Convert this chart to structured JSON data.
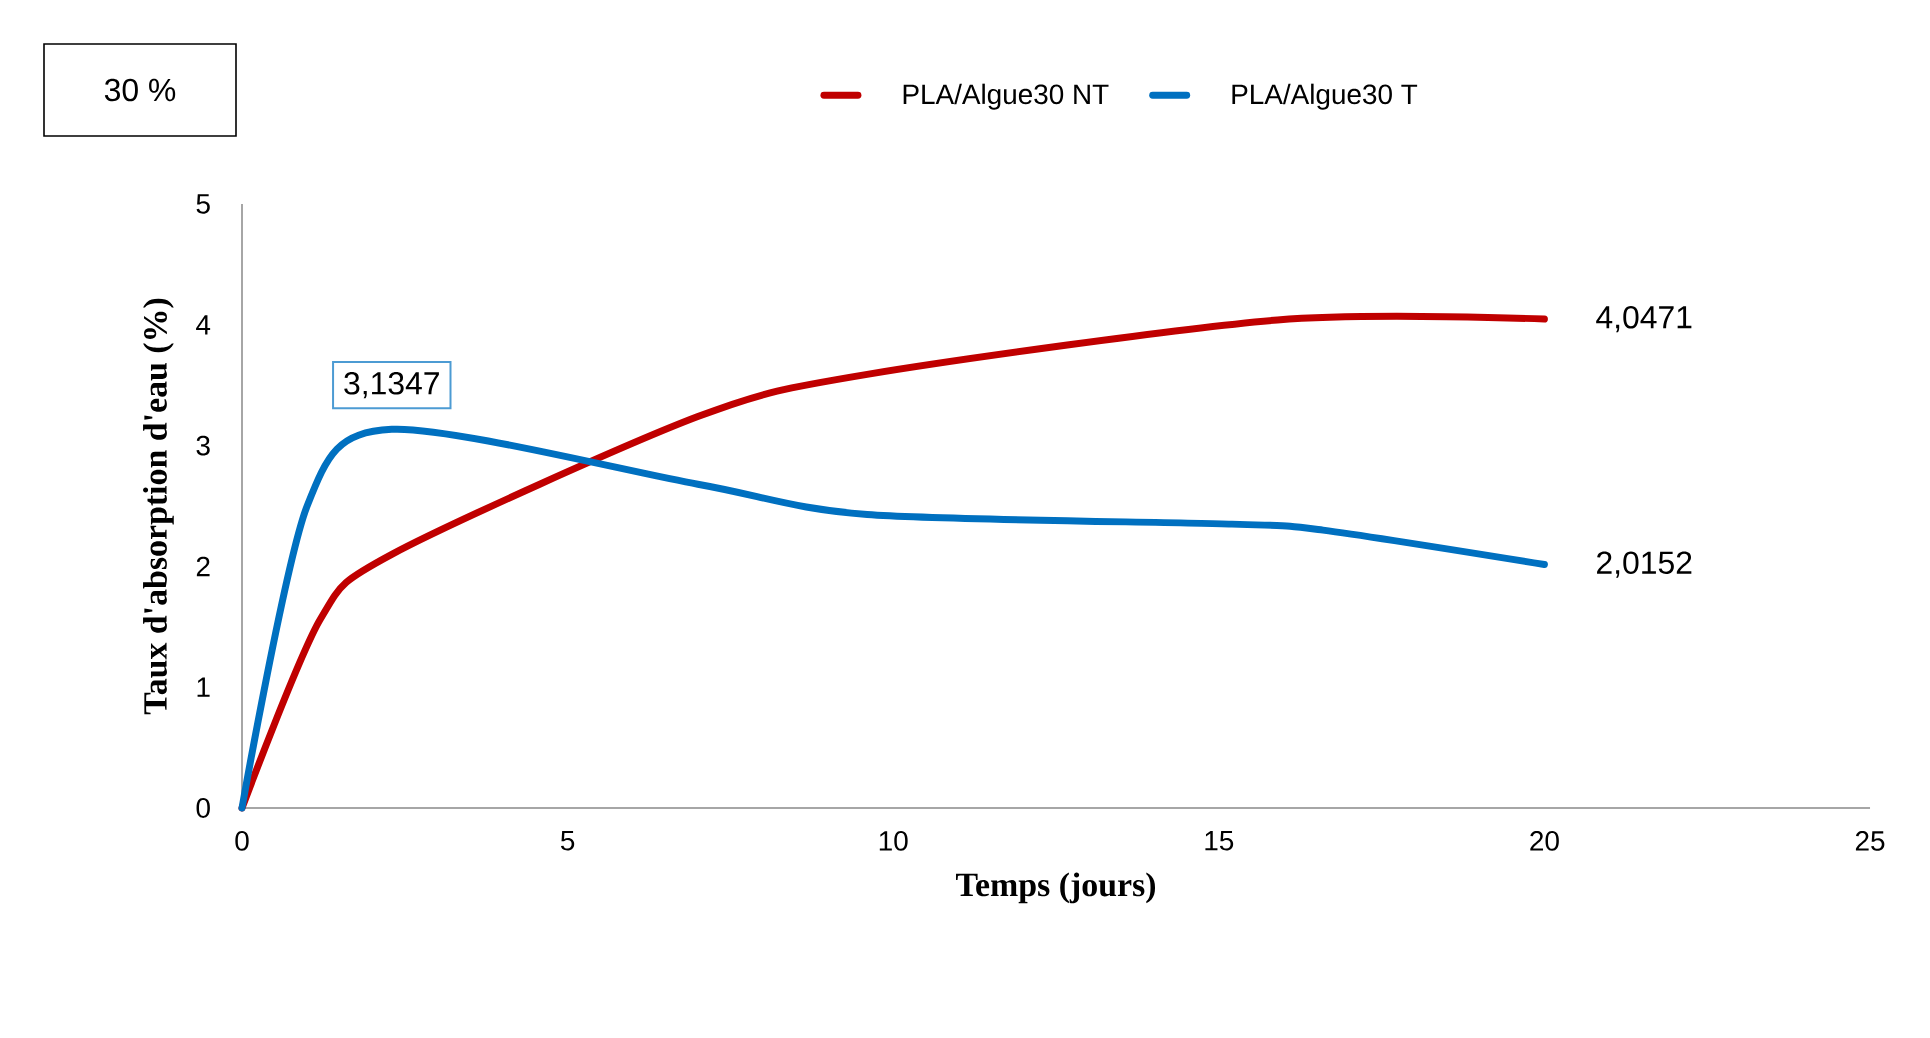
{
  "chart_data": {
    "type": "line",
    "xlabel": "Temps (jours)",
    "ylabel": "Taux d'absorption d'eau (%)",
    "xlim": [
      0,
      25
    ],
    "xticks": [
      0,
      5,
      10,
      15,
      20,
      25
    ],
    "ylim": [
      0,
      5
    ],
    "yticks": [
      0,
      1,
      2,
      3,
      4,
      5
    ],
    "grid": false,
    "legend": "top",
    "marker": "none",
    "line_style": "solid",
    "series": [
      {
        "name": "PLA/Algue30 NT",
        "color": "#c00000",
        "x": [
          0,
          1.2,
          2.3,
          7,
          9.6,
          15.9,
          20
        ],
        "values": [
          0,
          1.56,
          2.1,
          3.24,
          3.59,
          4.04,
          4.0471
        ],
        "value_labels": [
          null,
          null,
          null,
          null,
          null,
          null,
          "4,0471"
        ]
      },
      {
        "name": "PLA/Algue30 T",
        "color": "#0070c0",
        "x": [
          0,
          1,
          2.3,
          7,
          9.6,
          15.2,
          16.6,
          20
        ],
        "values": [
          0,
          2.5,
          3.1347,
          2.68,
          2.43,
          2.35,
          2.3,
          2.0152
        ],
        "value_labels": [
          null,
          null,
          "3,1347",
          null,
          null,
          null,
          null,
          "2,0152"
        ]
      }
    ],
    "annotations": [
      "30 %"
    ]
  }
}
